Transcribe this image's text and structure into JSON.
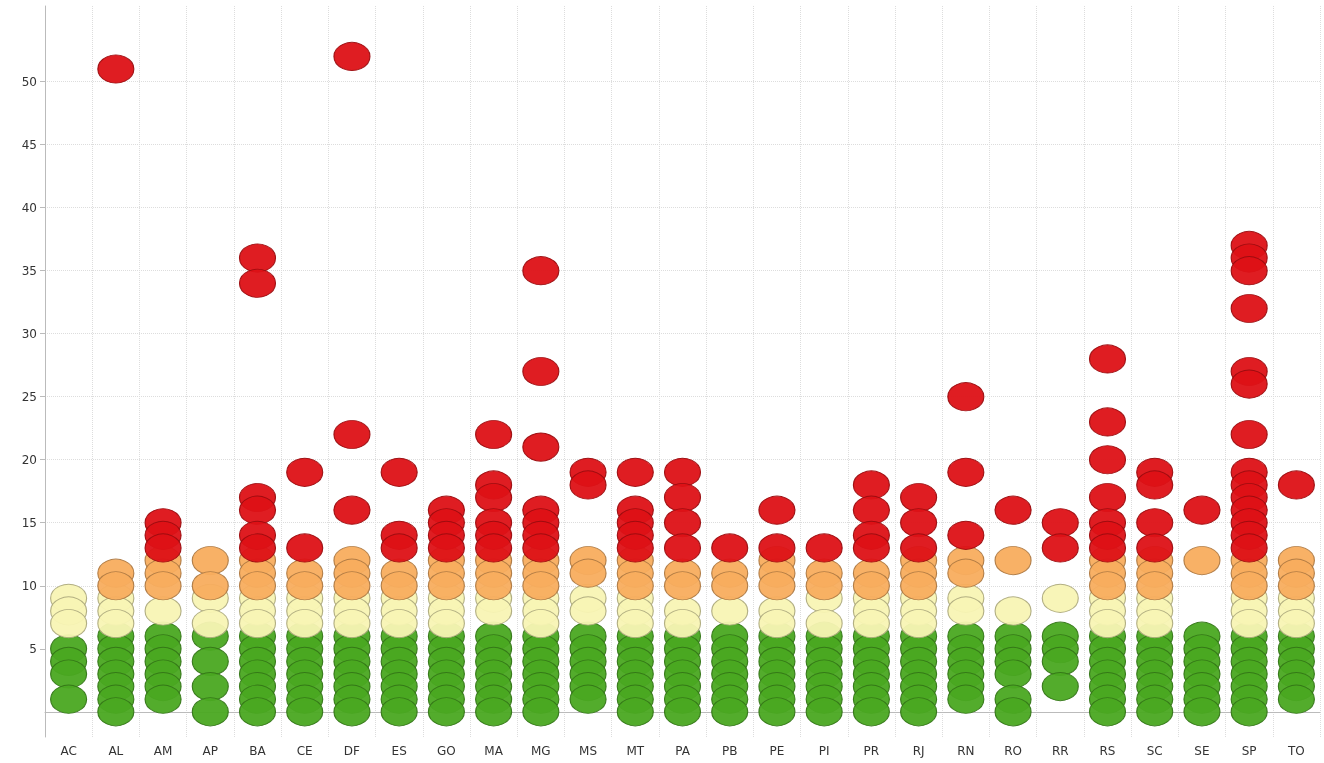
{
  "chart_data": {
    "type": "scatter",
    "categories": [
      "AC",
      "AL",
      "AM",
      "AP",
      "BA",
      "CE",
      "DF",
      "ES",
      "GO",
      "MA",
      "MG",
      "MS",
      "MT",
      "PA",
      "PB",
      "PE",
      "PI",
      "PR",
      "RJ",
      "RN",
      "RO",
      "RR",
      "RS",
      "SC",
      "SE",
      "SP",
      "TO"
    ],
    "ylim": [
      -2,
      56
    ],
    "yticks": [
      5,
      10,
      15,
      20,
      25,
      30,
      35,
      40,
      45,
      50
    ],
    "grid": true,
    "marker": "circle",
    "series": [
      {
        "color": "#4aa821",
        "x": [
          "AC",
          "AC",
          "AC",
          "AC",
          "AL",
          "AL",
          "AL",
          "AL",
          "AL",
          "AL",
          "AL",
          "AM",
          "AM",
          "AM",
          "AM",
          "AM",
          "AM",
          "AP",
          "AP",
          "AP",
          "AP",
          "BA",
          "BA",
          "BA",
          "BA",
          "BA",
          "BA",
          "BA",
          "CE",
          "CE",
          "CE",
          "CE",
          "CE",
          "CE",
          "CE",
          "DF",
          "DF",
          "DF",
          "DF",
          "DF",
          "DF",
          "DF",
          "ES",
          "ES",
          "ES",
          "ES",
          "ES",
          "ES",
          "ES",
          "GO",
          "GO",
          "GO",
          "GO",
          "GO",
          "GO",
          "GO",
          "MA",
          "MA",
          "MA",
          "MA",
          "MA",
          "MA",
          "MA",
          "MG",
          "MG",
          "MG",
          "MG",
          "MG",
          "MG",
          "MG",
          "MS",
          "MS",
          "MS",
          "MS",
          "MS",
          "MS",
          "MT",
          "MT",
          "MT",
          "MT",
          "MT",
          "MT",
          "MT",
          "PA",
          "PA",
          "PA",
          "PA",
          "PA",
          "PA",
          "PA",
          "PB",
          "PB",
          "PB",
          "PB",
          "PB",
          "PB",
          "PB",
          "PE",
          "PE",
          "PE",
          "PE",
          "PE",
          "PE",
          "PE",
          "PI",
          "PI",
          "PI",
          "PI",
          "PI",
          "PI",
          "PI",
          "PR",
          "PR",
          "PR",
          "PR",
          "PR",
          "PR",
          "PR",
          "RJ",
          "RJ",
          "RJ",
          "RJ",
          "RJ",
          "RJ",
          "RJ",
          "RN",
          "RN",
          "RN",
          "RN",
          "RN",
          "RN",
          "RO",
          "RO",
          "RO",
          "RO",
          "RO",
          "RO",
          "RR",
          "RR",
          "RR",
          "RR",
          "RS",
          "RS",
          "RS",
          "RS",
          "RS",
          "RS",
          "RS",
          "SC",
          "SC",
          "SC",
          "SC",
          "SC",
          "SC",
          "SC",
          "SE",
          "SE",
          "SE",
          "SE",
          "SE",
          "SE",
          "SE",
          "SP",
          "SP",
          "SP",
          "SP",
          "SP",
          "SP",
          "SP",
          "TO",
          "TO",
          "TO",
          "TO",
          "TO",
          "TO"
        ],
        "values": [
          5,
          4,
          3,
          1,
          6,
          5,
          4,
          3,
          2,
          1,
          0,
          6,
          5,
          4,
          3,
          2,
          1,
          6,
          4,
          2,
          0,
          6,
          5,
          4,
          3,
          2,
          1,
          0,
          6,
          5,
          4,
          3,
          2,
          1,
          0,
          6,
          5,
          4,
          3,
          2,
          1,
          0,
          6,
          5,
          4,
          3,
          2,
          1,
          0,
          6,
          5,
          4,
          3,
          2,
          1,
          0,
          6,
          5,
          4,
          3,
          2,
          1,
          0,
          6,
          5,
          4,
          3,
          2,
          1,
          0,
          6,
          5,
          4,
          3,
          2,
          1,
          6,
          5,
          4,
          3,
          2,
          1,
          0,
          6,
          5,
          4,
          3,
          2,
          1,
          0,
          6,
          5,
          4,
          3,
          2,
          1,
          0,
          6,
          5,
          4,
          3,
          2,
          1,
          0,
          6,
          5,
          4,
          3,
          2,
          1,
          0,
          6,
          5,
          4,
          3,
          2,
          1,
          0,
          6,
          5,
          4,
          3,
          2,
          1,
          0,
          6,
          5,
          4,
          3,
          2,
          1,
          6,
          5,
          4,
          3,
          1,
          0,
          6,
          5,
          4,
          2,
          6,
          5,
          4,
          3,
          2,
          1,
          0,
          6,
          5,
          4,
          3,
          2,
          1,
          0,
          6,
          5,
          4,
          3,
          2,
          1,
          0,
          6,
          5,
          4,
          3,
          2,
          1,
          0,
          6,
          5,
          4,
          3,
          2,
          1
        ]
      },
      {
        "color": "#f8f4b4",
        "x": [
          "AC",
          "AC",
          "AC",
          "AL",
          "AL",
          "AL",
          "AM",
          "AP",
          "AP",
          "BA",
          "BA",
          "BA",
          "CE",
          "CE",
          "CE",
          "DF",
          "DF",
          "DF",
          "ES",
          "ES",
          "ES",
          "GO",
          "GO",
          "GO",
          "MA",
          "MA",
          "MG",
          "MG",
          "MG",
          "MS",
          "MS",
          "MT",
          "MT",
          "MT",
          "PA",
          "PA",
          "PB",
          "PE",
          "PE",
          "PI",
          "PI",
          "PR",
          "PR",
          "PR",
          "RJ",
          "RJ",
          "RJ",
          "RN",
          "RN",
          "RO",
          "RR",
          "RS",
          "RS",
          "RS",
          "SC",
          "SC",
          "SC",
          "SP",
          "SP",
          "SP",
          "TO",
          "TO",
          "TO"
        ],
        "values": [
          9,
          8,
          7,
          9,
          8,
          7,
          8,
          9,
          7,
          9,
          8,
          7,
          9,
          8,
          7,
          9,
          8,
          7,
          9,
          8,
          7,
          9,
          8,
          7,
          9,
          8,
          9,
          8,
          7,
          9,
          8,
          9,
          8,
          7,
          8,
          7,
          8,
          8,
          7,
          9,
          7,
          9,
          8,
          7,
          9,
          8,
          7,
          9,
          8,
          8,
          9,
          9,
          8,
          7,
          9,
          8,
          7,
          9,
          8,
          7,
          9,
          8,
          7
        ]
      },
      {
        "color": "#f8ad5e",
        "x": [
          "AL",
          "AL",
          "AM",
          "AM",
          "AM",
          "AP",
          "AP",
          "BA",
          "BA",
          "BA",
          "CE",
          "CE",
          "DF",
          "DF",
          "DF",
          "ES",
          "ES",
          "GO",
          "GO",
          "GO",
          "MA",
          "MA",
          "MA",
          "MG",
          "MG",
          "MG",
          "MS",
          "MS",
          "MT",
          "MT",
          "MT",
          "PA",
          "PA",
          "PB",
          "PB",
          "PE",
          "PE",
          "PE",
          "PI",
          "PI",
          "PR",
          "PR",
          "RJ",
          "RJ",
          "RJ",
          "RN",
          "RN",
          "RO",
          "RS",
          "RS",
          "RS",
          "SC",
          "SC",
          "SC",
          "SE",
          "SP",
          "SP",
          "SP",
          "TO",
          "TO",
          "TO"
        ],
        "values": [
          11,
          10,
          12,
          11,
          10,
          12,
          10,
          12,
          11,
          10,
          11,
          10,
          12,
          11,
          10,
          11,
          10,
          12,
          11,
          10,
          12,
          11,
          10,
          12,
          11,
          10,
          12,
          11,
          12,
          11,
          10,
          11,
          10,
          11,
          10,
          12,
          11,
          10,
          11,
          10,
          11,
          10,
          12,
          11,
          10,
          12,
          11,
          12,
          12,
          11,
          10,
          12,
          11,
          10,
          12,
          12,
          11,
          10,
          12,
          11,
          10
        ]
      },
      {
        "color": "#dd1116",
        "x": [
          "AL",
          "AM",
          "AM",
          "AM",
          "BA",
          "BA",
          "BA",
          "BA",
          "BA",
          "BA",
          "CE",
          "CE",
          "DF",
          "DF",
          "DF",
          "ES",
          "ES",
          "ES",
          "GO",
          "GO",
          "GO",
          "GO",
          "MA",
          "MA",
          "MA",
          "MA",
          "MA",
          "MA",
          "MG",
          "MG",
          "MG",
          "MG",
          "MG",
          "MG",
          "MG",
          "MS",
          "MS",
          "MT",
          "MT",
          "MT",
          "MT",
          "MT",
          "PA",
          "PA",
          "PA",
          "PA",
          "PB",
          "PE",
          "PE",
          "PI",
          "PR",
          "PR",
          "PR",
          "PR",
          "RJ",
          "RJ",
          "RJ",
          "RN",
          "RN",
          "RN",
          "RO",
          "RR",
          "RR",
          "RS",
          "RS",
          "RS",
          "RS",
          "RS",
          "RS",
          "RS",
          "SC",
          "SC",
          "SC",
          "SC",
          "SE",
          "SP",
          "SP",
          "SP",
          "SP",
          "SP",
          "SP",
          "SP",
          "SP",
          "SP",
          "SP",
          "SP",
          "SP",
          "SP",
          "SP",
          "TO"
        ],
        "values": [
          51,
          15,
          14,
          13,
          36,
          34,
          17,
          16,
          14,
          13,
          19,
          13,
          52,
          22,
          16,
          19,
          14,
          13,
          16,
          15,
          14,
          13,
          22,
          18,
          17,
          15,
          14,
          13,
          35,
          27,
          21,
          16,
          15,
          14,
          13,
          19,
          18,
          19,
          16,
          15,
          14,
          13,
          19,
          17,
          15,
          13,
          13,
          16,
          13,
          13,
          18,
          16,
          14,
          13,
          17,
          15,
          13,
          25,
          19,
          14,
          16,
          15,
          13,
          28,
          23,
          20,
          17,
          15,
          14,
          13,
          19,
          18,
          15,
          13,
          16,
          37,
          36,
          35,
          32,
          27,
          26,
          22,
          19,
          18,
          17,
          16,
          15,
          14,
          13,
          18
        ]
      }
    ]
  }
}
